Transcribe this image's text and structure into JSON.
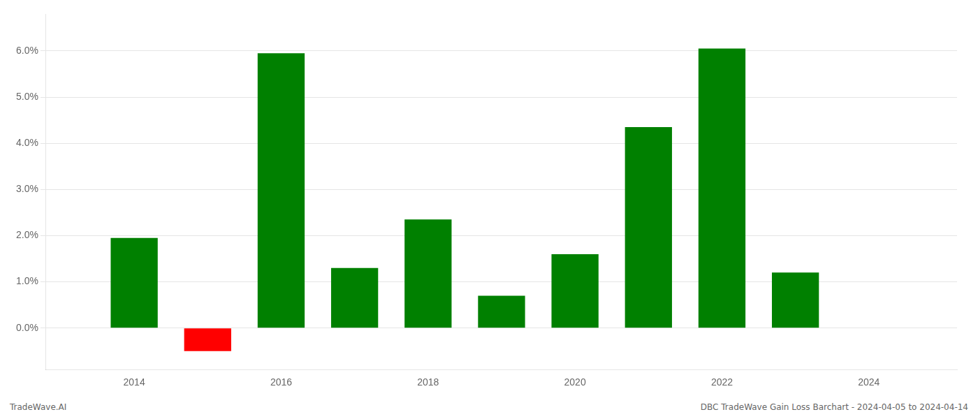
{
  "chart_data": {
    "type": "bar",
    "x": [
      2014,
      2015,
      2016,
      2017,
      2018,
      2019,
      2020,
      2021,
      2022,
      2023
    ],
    "values": [
      1.95,
      -0.5,
      5.95,
      1.3,
      2.35,
      0.7,
      1.6,
      4.35,
      6.05,
      1.2
    ],
    "colors": [
      "#008000",
      "#ff0000",
      "#008000",
      "#008000",
      "#008000",
      "#008000",
      "#008000",
      "#008000",
      "#008000",
      "#008000"
    ],
    "xlim": [
      2012.8,
      2025.2
    ],
    "xticks": [
      2014,
      2016,
      2018,
      2020,
      2022,
      2024
    ],
    "ylim": [
      -0.9,
      6.8
    ],
    "yticks": [
      {
        "value": 0.0,
        "label": "0.0%"
      },
      {
        "value": 1.0,
        "label": "1.0%"
      },
      {
        "value": 2.0,
        "label": "2.0%"
      },
      {
        "value": 3.0,
        "label": "3.0%"
      },
      {
        "value": 4.0,
        "label": "4.0%"
      },
      {
        "value": 5.0,
        "label": "5.0%"
      },
      {
        "value": 6.0,
        "label": "6.0%"
      }
    ],
    "grid": true,
    "annotations": [
      "TradeWave.AI",
      "DBC TradeWave Gain Loss Barchart - 2024-04-05 to 2024-04-14"
    ]
  }
}
